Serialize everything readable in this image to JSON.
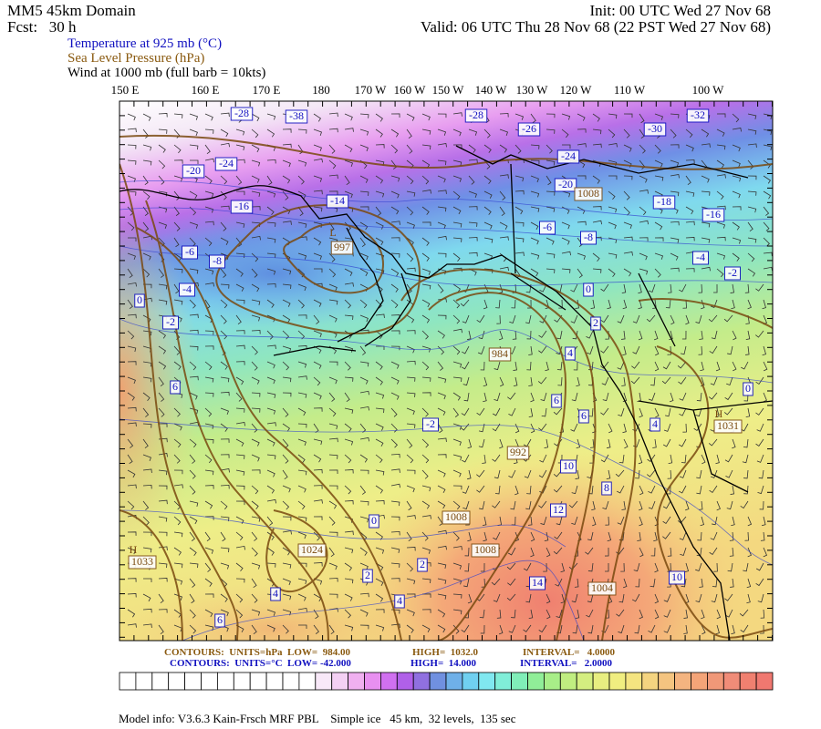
{
  "header": {
    "title": "MM5 45km Domain",
    "init": "Init: 00 UTC Wed 27 Nov 68",
    "fcst": "Fcst:   30 h",
    "valid": "Valid: 06 UTC Thu 28 Nov 68 (22 PST Wed 27 Nov 68)",
    "fields": [
      "Temperature at 925 mb (°C)",
      "Sea Level Pressure (hPa)",
      "Wind at 1000 mb (full barb = 10kts)"
    ]
  },
  "longitudes": [
    "150 E",
    "160 E",
    "170 E",
    "180",
    "170 W",
    "160 W",
    "150 W",
    "140 W",
    "130 W",
    "120 W",
    "110 W",
    "100 W"
  ],
  "temperature_labels": [
    "-28",
    "-38",
    "-28",
    "-26",
    "-30",
    "-32",
    "-24",
    "-24",
    "-20",
    "-20",
    "-18",
    "-16",
    "-14",
    "-16",
    "-6",
    "-8",
    "-4",
    "-2",
    "0",
    "6",
    "-8",
    "-6",
    "-4",
    "-2",
    "0",
    "2",
    "4",
    "6",
    "6",
    "4",
    "0",
    "10",
    "8",
    "12",
    "-2",
    "0",
    "2",
    "4",
    "4",
    "6",
    "2",
    "14",
    "10"
  ],
  "pressure_labels": [
    "997",
    "984",
    "992",
    "1008",
    "1008",
    "1024",
    "1004",
    "1031",
    "1033",
    "1008"
  ],
  "centers": [
    "L",
    "H",
    "H"
  ],
  "footer": {
    "slp": [
      "CONTOURS:  UNITS=hPa  LOW=  984.00",
      "HIGH=  1032.0",
      "INTERVAL=   4.0000"
    ],
    "temp": [
      "CONTOURS:  UNITS=°C  LOW= -42.000",
      "HIGH=  14.000",
      "INTERVAL=   2.0000"
    ],
    "model_info": "Model info: V3.6.3 Kain-Frsch MRF PBL    Simple ice   45 km,  32 levels,  135 sec"
  }
}
